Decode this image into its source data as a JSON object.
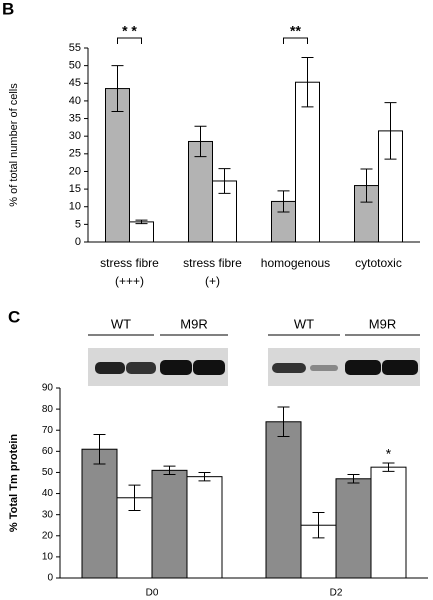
{
  "chart_data": [
    {
      "type": "bar",
      "panel": "B",
      "ylabel": "% of total number of cells",
      "categories": [
        [
          "stress fibre",
          "(+++)"
        ],
        [
          "stress fibre",
          "(+)"
        ],
        [
          "homogenous"
        ],
        [
          "cytotoxic"
        ]
      ],
      "series": [
        {
          "color": "#b3b3b3",
          "values": [
            43.5,
            28.5,
            11.5,
            16
          ],
          "errors": [
            6.5,
            4.3,
            3,
            4.7
          ]
        },
        {
          "color": "#ffffff",
          "values": [
            5.7,
            17.3,
            45.3,
            31.5
          ],
          "errors": [
            0.5,
            3.5,
            7,
            8
          ]
        }
      ],
      "annotations": [
        "* *",
        "**"
      ],
      "ylim": [
        0,
        55
      ],
      "yticks": [
        0,
        5,
        10,
        15,
        20,
        25,
        30,
        35,
        40,
        45,
        50,
        55
      ]
    },
    {
      "type": "bar",
      "panel": "C",
      "ylabel": "% Total Tm  protein",
      "lanes": [
        "WT",
        "M9R",
        "WT",
        "M9R"
      ],
      "categories": [
        "D0",
        "D2"
      ],
      "series": [
        {
          "color": "#8c8c8c",
          "values": [
            61,
            74
          ],
          "errors": [
            7,
            7
          ]
        },
        {
          "color": "#ffffff",
          "values": [
            38,
            25
          ],
          "errors": [
            6,
            6
          ]
        },
        {
          "color": "#8c8c8c",
          "values": [
            51,
            47
          ],
          "errors": [
            2,
            2
          ]
        },
        {
          "color": "#ffffff",
          "values": [
            48,
            52.5
          ],
          "errors": [
            2,
            2
          ]
        }
      ],
      "annotations": [
        "*"
      ],
      "ylim": [
        0,
        90
      ],
      "yticks": [
        0,
        10,
        20,
        30,
        40,
        50,
        60,
        70,
        80,
        90
      ]
    }
  ]
}
